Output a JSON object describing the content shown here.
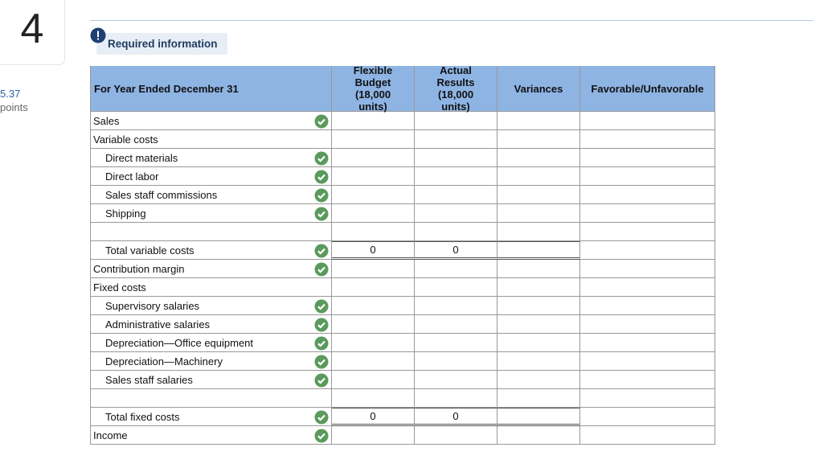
{
  "question": {
    "number": "4",
    "score": "5.37",
    "score_unit": "points"
  },
  "banner": {
    "title": "Required information"
  },
  "table": {
    "headers": [
      "For Year Ended December 31",
      "Flexible Budget (18,000 units)",
      "Actual Results (18,000 units)",
      "Variances",
      "Favorable/Unfavorable"
    ],
    "rows": [
      {
        "label": "Sales",
        "checked": true
      },
      {
        "label": "Variable costs"
      },
      {
        "label": "Direct materials",
        "indent": true,
        "checked": true
      },
      {
        "label": "Direct labor",
        "indent": true,
        "checked": true
      },
      {
        "label": "Sales staff commissions",
        "indent": true,
        "checked": true
      },
      {
        "label": "Shipping",
        "indent": true,
        "checked": true,
        "spacer_after": true
      },
      {
        "label": "Total variable costs",
        "indent": true,
        "checked": true,
        "values": [
          0,
          0
        ]
      },
      {
        "label": "Contribution margin",
        "checked": true
      },
      {
        "label": "Fixed costs"
      },
      {
        "label": "Supervisory salaries",
        "indent": true,
        "checked": true
      },
      {
        "label": "Administrative salaries",
        "indent": true,
        "checked": true
      },
      {
        "label": "Depreciation—Office equipment",
        "indent": true,
        "checked": true
      },
      {
        "label": "Depreciation—Machinery",
        "indent": true,
        "checked": true
      },
      {
        "label": "Sales staff salaries",
        "indent": true,
        "checked": true,
        "spacer_after": true
      },
      {
        "label": "Total fixed costs",
        "indent": true,
        "checked": true,
        "values": [
          0,
          0
        ]
      },
      {
        "label": "Income",
        "checked": true
      }
    ]
  }
}
